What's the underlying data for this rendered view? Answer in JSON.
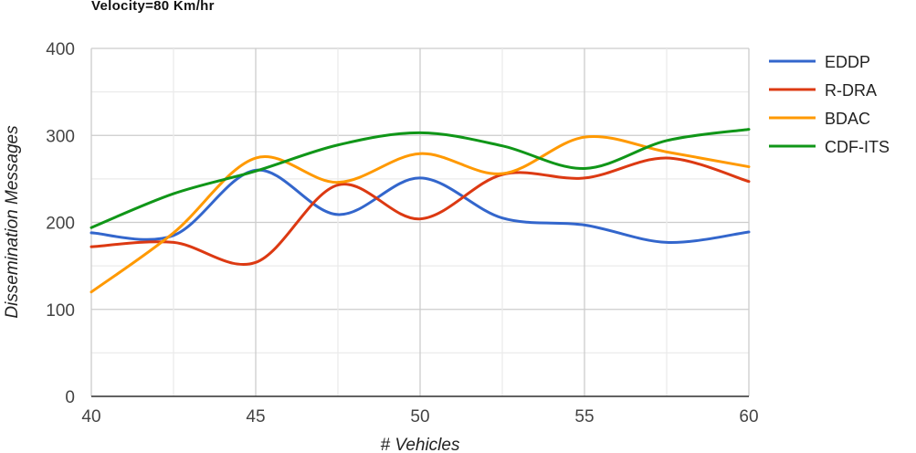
{
  "chart_data": {
    "type": "line",
    "title": "Velocity=80 Km/hr",
    "xlabel": "# Vehicles",
    "ylabel": "Dissemination Messages",
    "x": [
      40,
      42.5,
      45,
      47.5,
      50,
      52.5,
      55,
      57.5,
      60
    ],
    "xticks": [
      40,
      45,
      50,
      55,
      60
    ],
    "yticks": [
      0,
      100,
      200,
      300,
      400
    ],
    "xlim": [
      40,
      60
    ],
    "ylim": [
      0,
      400
    ],
    "grid": true,
    "legend_position": "right",
    "smooth": true,
    "series": [
      {
        "name": "EDDP",
        "color": "#3366cc",
        "values": [
          188,
          185,
          260,
          209,
          251,
          205,
          197,
          177,
          189
        ]
      },
      {
        "name": "R-DRA",
        "color": "#dc3912",
        "values": [
          172,
          177,
          154,
          243,
          204,
          255,
          251,
          274,
          247
        ]
      },
      {
        "name": "BDAC",
        "color": "#ff9900",
        "values": [
          120,
          188,
          274,
          246,
          279,
          256,
          298,
          281,
          264
        ]
      },
      {
        "name": "CDF-ITS",
        "color": "#109618",
        "values": [
          194,
          233,
          259,
          289,
          303,
          288,
          262,
          294,
          307
        ]
      }
    ]
  }
}
